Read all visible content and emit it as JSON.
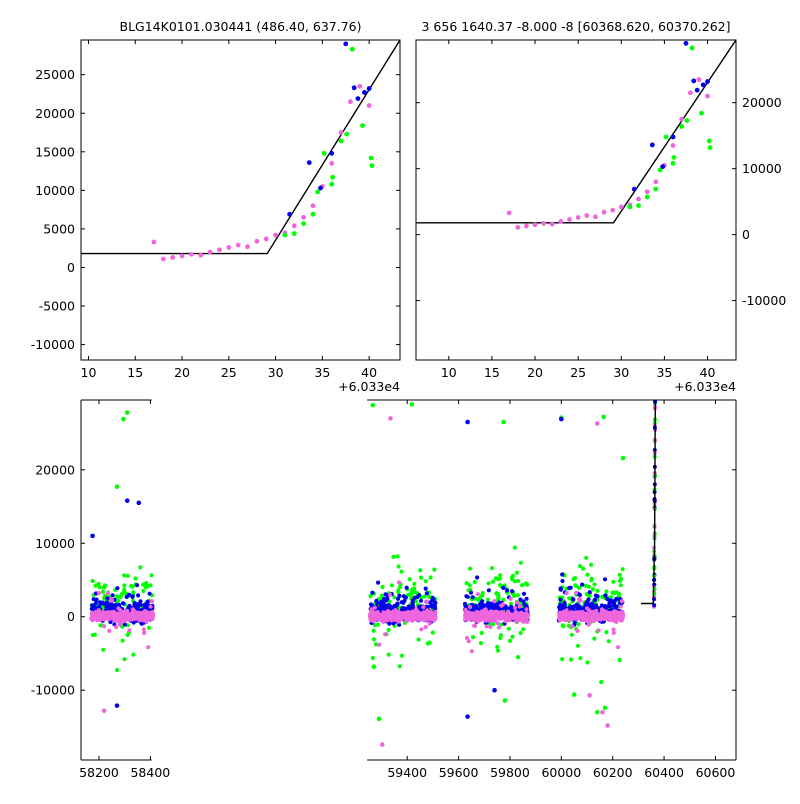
{
  "colors": {
    "green": "#00ff00",
    "blue": "#0000ee",
    "pink": "#ee66dd",
    "line": "#000000",
    "axes": "#000000"
  },
  "chart_data": [
    {
      "type": "scatter",
      "title": "BLG14K0101.030441 (486.40, 637.76)",
      "offset_label": "+6.033e4",
      "xlim": [
        9.2,
        43.3
      ],
      "ylim": [
        -12000,
        29500
      ],
      "xticks": [
        10,
        15,
        20,
        25,
        30,
        35,
        40
      ],
      "yticks": [
        25000,
        20000,
        15000,
        10000,
        5000,
        0,
        -5000,
        -10000
      ],
      "ytick_side": "left",
      "model_line": [
        [
          9.2,
          1800
        ],
        [
          29.1,
          1800
        ],
        [
          43.3,
          29500
        ]
      ],
      "series": [
        {
          "color": "pink",
          "points": [
            [
              17,
              3300
            ],
            [
              18,
              1100
            ],
            [
              19,
              1300
            ],
            [
              20,
              1500
            ],
            [
              21,
              1700
            ],
            [
              22,
              1600
            ],
            [
              23,
              2000
            ],
            [
              24,
              2300
            ],
            [
              25,
              2600
            ],
            [
              26,
              2900
            ],
            [
              27,
              2700
            ],
            [
              28,
              3400
            ],
            [
              29,
              3700
            ],
            [
              30,
              4200
            ],
            [
              31,
              4500
            ],
            [
              32,
              5400
            ],
            [
              33,
              6500
            ],
            [
              34,
              8000
            ],
            [
              35,
              10500
            ],
            [
              36,
              13500
            ],
            [
              37,
              17500
            ],
            [
              38,
              21500
            ],
            [
              39,
              23500
            ],
            [
              40,
              21000
            ]
          ]
        },
        {
          "color": "green",
          "points": [
            [
              31,
              4200
            ],
            [
              32,
              4400
            ],
            [
              33,
              5700
            ],
            [
              34,
              6900
            ],
            [
              34.5,
              9800
            ],
            [
              35.2,
              14800
            ],
            [
              36,
              10800
            ],
            [
              36.1,
              11700
            ],
            [
              37,
              16400
            ],
            [
              37.6,
              17300
            ],
            [
              38.2,
              28300
            ],
            [
              39.3,
              18400
            ],
            [
              40.2,
              14200
            ],
            [
              40.3,
              13200
            ]
          ]
        },
        {
          "color": "blue",
          "points": [
            [
              31.5,
              6900
            ],
            [
              33.6,
              13600
            ],
            [
              34.8,
              10300
            ],
            [
              36,
              14800
            ],
            [
              37.5,
              29000
            ],
            [
              38.4,
              23300
            ],
            [
              38.8,
              21900
            ],
            [
              39.5,
              22700
            ],
            [
              40,
              23200
            ]
          ]
        }
      ]
    },
    {
      "type": "scatter",
      "title": "3 656 1640.37 -8.000 -8 [60368.620, 60370.262]",
      "offset_label": "+6.033e4",
      "xlim": [
        6.2,
        43.3
      ],
      "ylim": [
        -19000,
        29500
      ],
      "xticks": [
        10,
        15,
        20,
        25,
        30,
        35,
        40
      ],
      "yticks": [
        20000,
        10000,
        0,
        -10000
      ],
      "ytick_side": "right",
      "model_line": [
        [
          6.2,
          1800
        ],
        [
          29.1,
          1800
        ],
        [
          43.3,
          29500
        ]
      ],
      "series": [
        {
          "color": "pink",
          "points": [
            [
              17,
              3300
            ],
            [
              18,
              1100
            ],
            [
              19,
              1300
            ],
            [
              20,
              1500
            ],
            [
              21,
              1700
            ],
            [
              22,
              1600
            ],
            [
              23,
              2000
            ],
            [
              24,
              2300
            ],
            [
              25,
              2600
            ],
            [
              26,
              2900
            ],
            [
              27,
              2700
            ],
            [
              28,
              3400
            ],
            [
              29,
              3700
            ],
            [
              30,
              4200
            ],
            [
              31,
              4500
            ],
            [
              32,
              5400
            ],
            [
              33,
              6500
            ],
            [
              34,
              8000
            ],
            [
              35,
              10500
            ],
            [
              36,
              13500
            ],
            [
              37,
              17500
            ],
            [
              38,
              21500
            ],
            [
              39,
              23500
            ],
            [
              40,
              21000
            ]
          ]
        },
        {
          "color": "green",
          "points": [
            [
              31,
              4200
            ],
            [
              32,
              4400
            ],
            [
              33,
              5700
            ],
            [
              34,
              6900
            ],
            [
              34.5,
              9800
            ],
            [
              35.2,
              14800
            ],
            [
              36,
              10800
            ],
            [
              36.1,
              11700
            ],
            [
              37,
              16400
            ],
            [
              37.6,
              17300
            ],
            [
              38.2,
              28300
            ],
            [
              39.3,
              18400
            ],
            [
              40.2,
              14200
            ],
            [
              40.3,
              13200
            ]
          ]
        },
        {
          "color": "blue",
          "points": [
            [
              31.5,
              6900
            ],
            [
              33.6,
              13600
            ],
            [
              34.8,
              10300
            ],
            [
              36,
              14800
            ],
            [
              37.5,
              29000
            ],
            [
              38.4,
              23300
            ],
            [
              38.8,
              21900
            ],
            [
              39.5,
              22700
            ],
            [
              40,
              23200
            ]
          ]
        }
      ]
    },
    {
      "type": "scatter",
      "title": "",
      "xlim": [
        58130,
        60680
      ],
      "ylim": [
        -19500,
        29500
      ],
      "xticks": [
        58200,
        58400,
        59400,
        59600,
        59800,
        60000,
        60200,
        60400,
        60600
      ],
      "yticks": [
        20000,
        10000,
        0,
        -10000
      ],
      "ytick_side": "left",
      "axis_gap_data": [
        58405,
        59244
      ],
      "model_line": [
        [
          60310,
          1800
        ],
        [
          60358,
          1800
        ],
        [
          60363,
          10000
        ],
        [
          60366,
          29500
        ]
      ],
      "seasons": [
        {
          "start": 58170,
          "end": 58410
        },
        {
          "start": 59255,
          "end": 59510
        },
        {
          "start": 59625,
          "end": 59870
        },
        {
          "start": 59990,
          "end": 60240
        }
      ],
      "highlight_points": [
        {
          "color": "green",
          "points": [
            [
              58270,
              17700
            ],
            [
              58310,
              27800
            ],
            [
              58295,
              26900
            ],
            [
              59266,
              28800
            ],
            [
              59418,
              28900
            ],
            [
              59775,
              26500
            ],
            [
              60000,
              27100
            ],
            [
              60165,
              27200
            ],
            [
              60240,
              21600
            ],
            [
              59270,
              -6800
            ],
            [
              59290,
              -13900
            ],
            [
              59780,
              -11400
            ],
            [
              60050,
              -10600
            ],
            [
              60140,
              -13000
            ],
            [
              60170,
              -12400
            ]
          ]
        },
        {
          "color": "blue",
          "points": [
            [
              58175,
              11000
            ],
            [
              58310,
              15800
            ],
            [
              58355,
              15500
            ],
            [
              59635,
              26500
            ],
            [
              60000,
              26900
            ],
            [
              58270,
              -12100
            ],
            [
              59635,
              -13600
            ],
            [
              59740,
              -10000
            ]
          ]
        },
        {
          "color": "pink",
          "points": [
            [
              58220,
              -12800
            ],
            [
              59303,
              -17400
            ],
            [
              59335,
              27000
            ],
            [
              60140,
              26300
            ],
            [
              60160,
              -13000
            ],
            [
              60180,
              -14800
            ],
            [
              60110,
              -10700
            ]
          ]
        }
      ]
    }
  ]
}
